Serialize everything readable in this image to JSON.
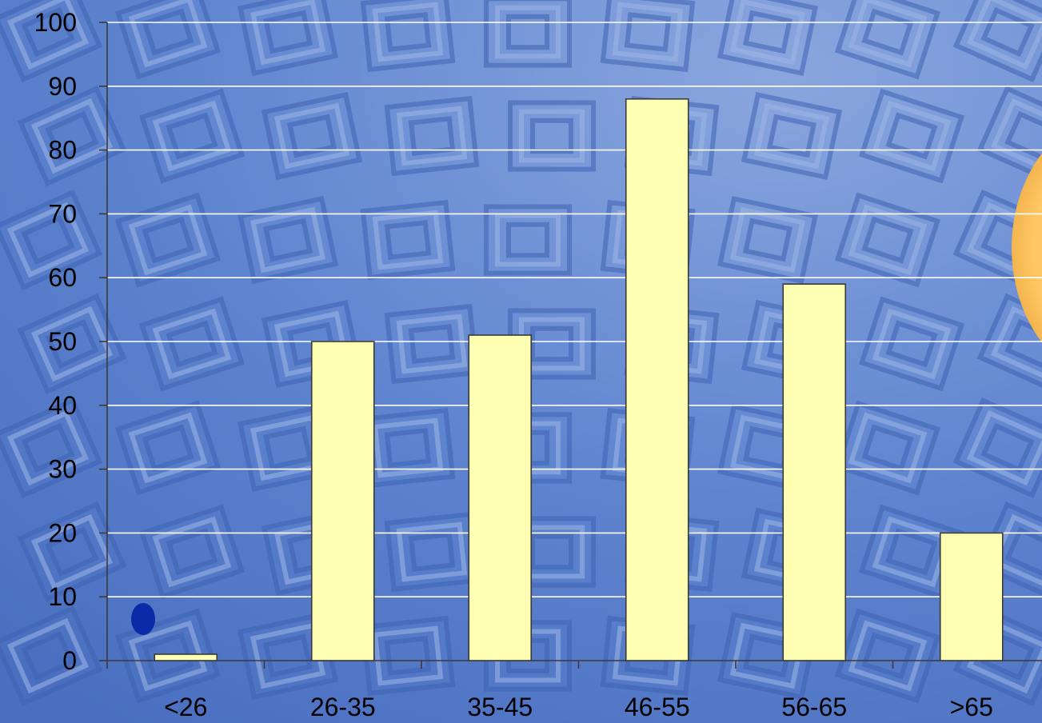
{
  "colors": {
    "background": "#5078c8",
    "background_light": "#8aa6de",
    "coffer_dark": "#3f63b2",
    "coffer_light": "#9fb7e6",
    "grid": "#ffffff",
    "bar_fill": "#ffffb4",
    "bar_stroke": "#3a3a3a",
    "accent_shape": "#ffc864",
    "dot": "#0a2aa8"
  },
  "decorations": {
    "background": "coffered-dome-photo",
    "right_edge": "orange-disc",
    "lower_left": "blue-dot"
  },
  "chart_data": {
    "type": "bar",
    "categories": [
      "<26",
      "26-35",
      "35-45",
      "46-55",
      "56-65",
      ">65"
    ],
    "values": [
      1,
      50,
      51,
      88,
      59,
      20
    ],
    "ylim": [
      0,
      100
    ],
    "yticks": [
      0,
      10,
      20,
      30,
      40,
      50,
      60,
      70,
      80,
      90,
      100
    ],
    "grid": true,
    "legend": "none",
    "title": "",
    "xlabel": "",
    "ylabel": ""
  }
}
